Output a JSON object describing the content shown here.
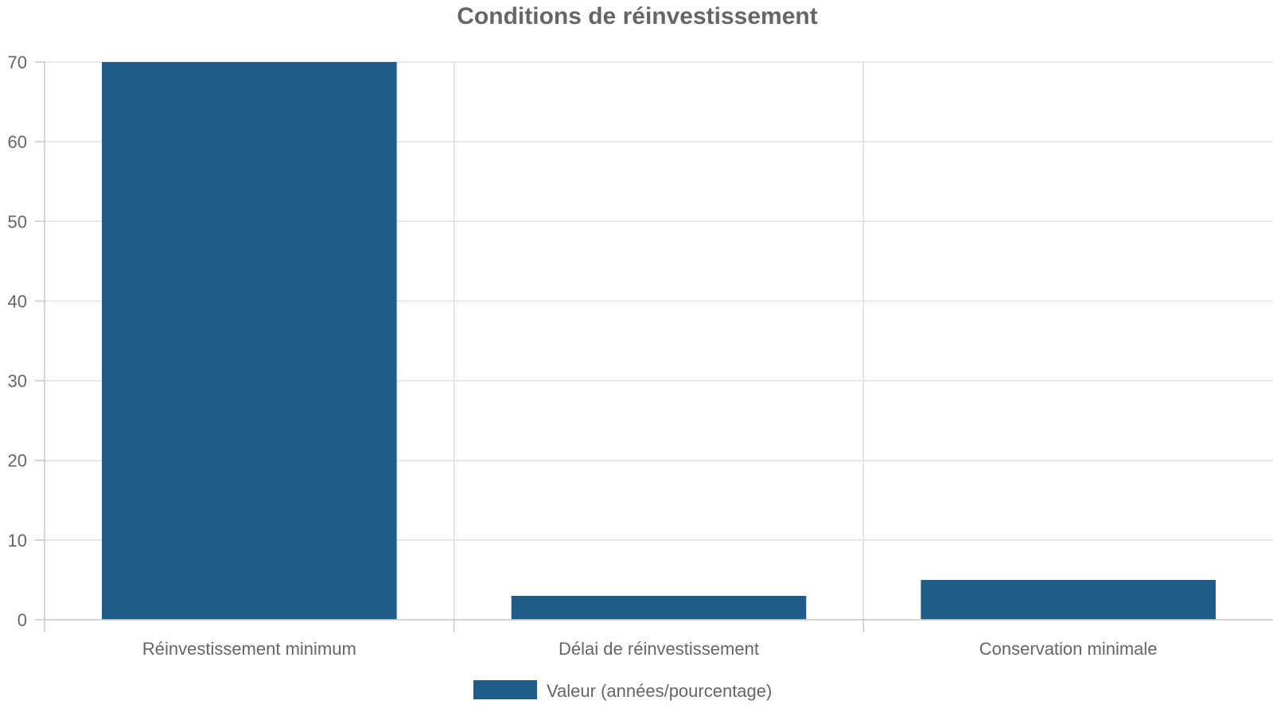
{
  "chart_data": {
    "type": "bar",
    "title": "Conditions de réinvestissement",
    "categories": [
      "Réinvestissement minimum",
      "Délai de réinvestissement",
      "Conservation minimale"
    ],
    "series": [
      {
        "name": "Valeur (années/pourcentage)",
        "values": [
          70,
          3,
          5
        ],
        "color": "#1f5c87"
      }
    ],
    "ylim": [
      0,
      70
    ],
    "yticks": [
      0,
      10,
      20,
      30,
      40,
      50,
      60,
      70
    ],
    "xlabel": "",
    "ylabel": "",
    "grid": true,
    "legend": "bottom-center"
  }
}
